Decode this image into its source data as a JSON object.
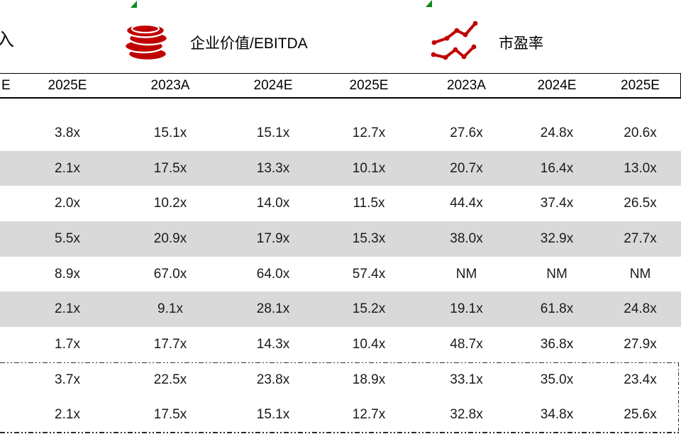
{
  "page": {
    "left_text_fragment": "入"
  },
  "colors": {
    "accent_red": "#C00000",
    "row_shade": "#D9D9D9",
    "border": "#000000",
    "text": "#1A1A1A",
    "green_marker": "#0E8A16"
  },
  "metric_groups": [
    {
      "icon": "coins-icon",
      "label": "企业价值/EBITDA"
    },
    {
      "icon": "line-chart-icon",
      "label": "市盈率"
    }
  ],
  "table": {
    "header": [
      "E",
      "2025E",
      "2023A",
      "2024E",
      "2025E",
      "2023A",
      "2024E",
      "2025E"
    ],
    "rows": [
      {
        "shade": false,
        "summary": false,
        "cells": [
          "",
          "3.8x",
          "15.1x",
          "15.1x",
          "12.7x",
          "27.6x",
          "24.8x",
          "20.6x"
        ]
      },
      {
        "shade": true,
        "summary": false,
        "cells": [
          "",
          "2.1x",
          "17.5x",
          "13.3x",
          "10.1x",
          "20.7x",
          "16.4x",
          "13.0x"
        ]
      },
      {
        "shade": false,
        "summary": false,
        "cells": [
          "",
          "2.0x",
          "10.2x",
          "14.0x",
          "11.5x",
          "44.4x",
          "37.4x",
          "26.5x"
        ]
      },
      {
        "shade": true,
        "summary": false,
        "cells": [
          "",
          "5.5x",
          "20.9x",
          "17.9x",
          "15.3x",
          "38.0x",
          "32.9x",
          "27.7x"
        ]
      },
      {
        "shade": false,
        "summary": false,
        "cells": [
          "",
          "8.9x",
          "67.0x",
          "64.0x",
          "57.4x",
          "NM",
          "NM",
          "NM"
        ]
      },
      {
        "shade": true,
        "summary": false,
        "cells": [
          "",
          "2.1x",
          "9.1x",
          "28.1x",
          "15.2x",
          "19.1x",
          "61.8x",
          "24.8x"
        ]
      },
      {
        "shade": false,
        "summary": false,
        "cells": [
          "",
          "1.7x",
          "17.7x",
          "14.3x",
          "10.4x",
          "48.7x",
          "36.8x",
          "27.9x"
        ]
      },
      {
        "shade": false,
        "summary": true,
        "cells": [
          "",
          "3.7x",
          "22.5x",
          "23.8x",
          "18.9x",
          "33.1x",
          "35.0x",
          "23.4x"
        ]
      },
      {
        "shade": false,
        "summary": true,
        "cells": [
          "",
          "2.1x",
          "17.5x",
          "15.1x",
          "12.7x",
          "32.8x",
          "34.8x",
          "25.6x"
        ]
      }
    ]
  }
}
